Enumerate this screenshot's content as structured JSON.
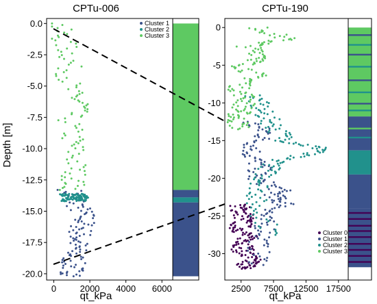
{
  "colors": {
    "cluster0": "#440154",
    "cluster1": "#3b528b",
    "cluster2": "#21918c",
    "cluster3": "#5ec962",
    "connector": "#000000"
  },
  "chart_data": [
    {
      "type": "scatter",
      "title": "CPTu-006",
      "xlabel": "qt_kPa",
      "ylabel": "Depth [m]",
      "xlim": [
        -400,
        6600
      ],
      "ylim": [
        -20.5,
        0.4
      ],
      "xticks": [
        0,
        2000,
        4000,
        6000
      ],
      "xtick_labels": [
        "0",
        "2000",
        "4000",
        "6000"
      ],
      "yticks": [
        0,
        -2.5,
        -5,
        -7.5,
        -10,
        -12.5,
        -15,
        -17.5,
        -20
      ],
      "ytick_labels": [
        "0.0",
        "-2.5",
        "-5.0",
        "-7.5",
        "-10.0",
        "-12.5",
        "-15.0",
        "-17.5",
        "-20.0"
      ],
      "legend": {
        "position": "top-right",
        "entries": [
          "Cluster 1",
          "Cluster 2",
          "Cluster 3"
        ]
      },
      "series": [
        {
          "name": "Cluster 1",
          "depth_range": [
            -13.3,
            -20.2
          ],
          "qt_center": 1000,
          "qt_spread": 3000,
          "profile": [
            [
              -13.3,
              700
            ],
            [
              -14.5,
              1100
            ],
            [
              -15.5,
              1500
            ],
            [
              -16.5,
              1300
            ],
            [
              -17.5,
              1100
            ],
            [
              -18.5,
              900
            ],
            [
              -19.5,
              800
            ],
            [
              -20.2,
              900
            ]
          ]
        },
        {
          "name": "Cluster 2",
          "depth_range": [
            -13.6,
            -14.2
          ],
          "qt_center": 900,
          "qt_spread": 3400,
          "profile": [
            [
              -13.6,
              800
            ],
            [
              -13.9,
              1000
            ],
            [
              -14.2,
              900
            ]
          ]
        },
        {
          "name": "Cluster 3",
          "depth_range": [
            0,
            -13.3
          ],
          "qt_center": 800,
          "qt_spread": 2600,
          "profile": [
            [
              0,
              0
            ],
            [
              -1.2,
              200
            ],
            [
              -2.5,
              700
            ],
            [
              -4.0,
              600
            ],
            [
              -5.5,
              700
            ],
            [
              -6.5,
              1400
            ],
            [
              -7.5,
              600
            ],
            [
              -9.0,
              800
            ],
            [
              -10.0,
              900
            ],
            [
              -11.5,
              1000
            ],
            [
              -12.5,
              900
            ],
            [
              -13.3,
              800
            ]
          ]
        }
      ],
      "cluster_column": [
        {
          "from": 0,
          "to": -13.3,
          "cluster": "cluster3"
        },
        {
          "from": -13.3,
          "to": -13.9,
          "cluster": "cluster1"
        },
        {
          "from": -13.9,
          "to": -14.3,
          "cluster": "cluster2"
        },
        {
          "from": -14.3,
          "to": -20.2,
          "cluster": "cluster1"
        }
      ]
    },
    {
      "type": "scatter",
      "title": "CPTu-190",
      "xlabel": "qt_kPa",
      "ylabel": "",
      "xlim": [
        0,
        19000
      ],
      "ylim": [
        -33.5,
        1.2
      ],
      "xticks": [
        2500,
        7500,
        12500,
        17500
      ],
      "xtick_labels": [
        "2500",
        "7500",
        "12500",
        "17500"
      ],
      "yticks": [
        0,
        -5,
        -10,
        -15,
        -20,
        -25,
        -30
      ],
      "ytick_labels": [
        "0",
        "-5",
        "-10",
        "-15",
        "-20",
        "-25",
        "-30"
      ],
      "legend": {
        "position": "bottom-right",
        "entries": [
          "Cluster 0",
          "Cluster 1",
          "Cluster 2",
          "Cluster 3"
        ]
      },
      "series": [
        {
          "name": "Cluster 0",
          "depth_range": [
            -23.5,
            -32
          ],
          "profile": [
            [
              -23.5,
              1500
            ],
            [
              -25,
              2500
            ],
            [
              -26.5,
              1800
            ],
            [
              -28,
              3000
            ],
            [
              -29.5,
              2200
            ],
            [
              -31,
              3500
            ],
            [
              -32,
              2500
            ]
          ]
        },
        {
          "name": "Cluster 1",
          "depth_range": [
            -12.5,
            -31.5
          ],
          "profile": [
            [
              -12.5,
              3000
            ],
            [
              -14,
              6000
            ],
            [
              -15.5,
              4000
            ],
            [
              -17,
              3500
            ],
            [
              -18.5,
              5000
            ],
            [
              -20,
              4000
            ],
            [
              -21.5,
              8000
            ],
            [
              -22.5,
              7000
            ],
            [
              -23.5,
              9000
            ],
            [
              -25,
              5000
            ],
            [
              -27,
              6000
            ],
            [
              -29,
              4500
            ],
            [
              -31.5,
              5000
            ]
          ]
        },
        {
          "name": "Cluster 2",
          "depth_range": [
            -9,
            -27.5
          ],
          "profile": [
            [
              -9,
              4000
            ],
            [
              -11,
              5000
            ],
            [
              -13,
              7000
            ],
            [
              -15,
              9000
            ],
            [
              -16.2,
              15000
            ],
            [
              -17.5,
              8000
            ],
            [
              -19,
              6000
            ],
            [
              -21,
              5000
            ],
            [
              -23.5,
              4000
            ],
            [
              -27.5,
              7000
            ]
          ]
        },
        {
          "name": "Cluster 3",
          "depth_range": [
            0,
            -13.5
          ],
          "profile": [
            [
              0,
              4500
            ],
            [
              -1.5,
              9000
            ],
            [
              -2.5,
              3000
            ],
            [
              -4,
              6000
            ],
            [
              -5,
              2000
            ],
            [
              -6.5,
              4500
            ],
            [
              -8,
              1500
            ],
            [
              -9.5,
              3000
            ],
            [
              -11,
              2000
            ],
            [
              -12,
              1200
            ],
            [
              -13.5,
              2000
            ]
          ]
        }
      ],
      "cluster_column": [
        {
          "from": 0,
          "to": -11.8,
          "cluster": "cluster3",
          "stripes": [
            [
              -1.0,
              "cluster1"
            ],
            [
              -2.3,
              "cluster2"
            ],
            [
              -3.6,
              "cluster1"
            ],
            [
              -5.2,
              "cluster2"
            ],
            [
              -7.0,
              "cluster1"
            ],
            [
              -8.6,
              "cluster2"
            ],
            [
              -10.1,
              "cluster1"
            ],
            [
              -11.0,
              "cluster2"
            ]
          ]
        },
        {
          "from": -11.8,
          "to": -16.3,
          "cluster": "cluster1",
          "stripes": [
            [
              -13.4,
              "cluster3"
            ],
            [
              -14.6,
              "cluster2"
            ]
          ]
        },
        {
          "from": -16.3,
          "to": -19.5,
          "cluster": "cluster2"
        },
        {
          "from": -19.5,
          "to": -24.0,
          "cluster": "cluster1"
        },
        {
          "from": -24.0,
          "to": -31.8,
          "cluster": "cluster1",
          "stripes": [
            [
              -24.6,
              "cluster0"
            ],
            [
              -25.4,
              "cluster0"
            ],
            [
              -26.3,
              "cluster0"
            ],
            [
              -27.0,
              "cluster0"
            ],
            [
              -27.8,
              "cluster0"
            ],
            [
              -28.7,
              "cluster0"
            ],
            [
              -29.5,
              "cluster0"
            ],
            [
              -30.3,
              "cluster0"
            ],
            [
              -31.1,
              "cluster0"
            ]
          ]
        }
      ]
    }
  ]
}
